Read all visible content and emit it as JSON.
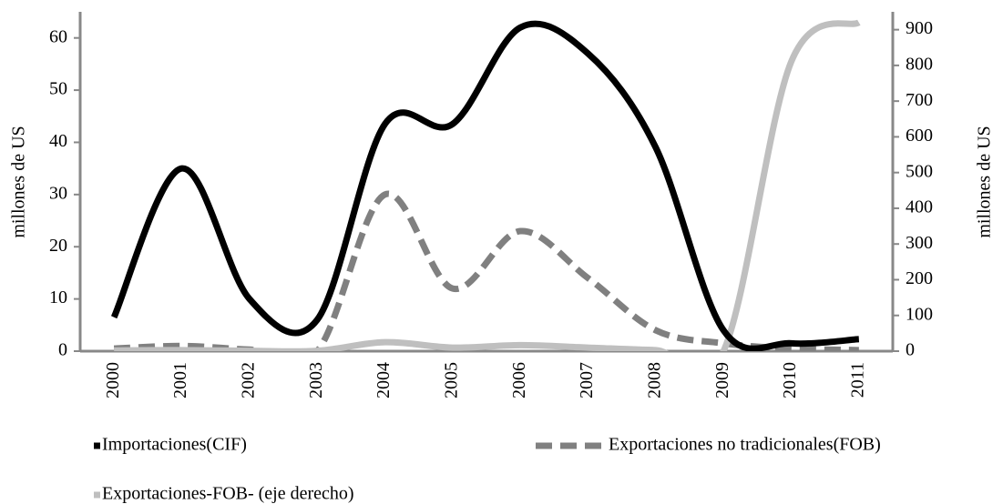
{
  "chart_data": {
    "type": "line",
    "categories": [
      "2000",
      "2001",
      "2002",
      "2003",
      "2004",
      "2005",
      "2006",
      "2007",
      "2008",
      "2009",
      "2010",
      "2011"
    ],
    "ylabel": "millones de US",
    "y2label": "millones de US",
    "ylim": [
      0,
      65
    ],
    "yticks": [
      0,
      10,
      20,
      30,
      40,
      50,
      60
    ],
    "y2lim": [
      0,
      950
    ],
    "y2ticks": [
      0,
      100,
      200,
      300,
      400,
      500,
      600,
      700,
      800,
      900
    ],
    "series": [
      {
        "name": "Importaciones(CIF)",
        "color": "#000000",
        "style": "solid",
        "values": [
          6.5,
          35,
          10,
          6,
          43.5,
          43.5,
          62,
          57,
          39,
          4,
          1.5,
          2.3
        ]
      },
      {
        "name": "Exportaciones no tradicionales(FOB)",
        "color": "#808080",
        "style": "dashed",
        "values": [
          0.5,
          1,
          0.3,
          0,
          30,
          12,
          23,
          14,
          4,
          1.5,
          0.5,
          0.2
        ]
      },
      {
        "name": "Exportaciones-FOB- (eje derecho)",
        "color": "#bfbfbf",
        "style": "solid",
        "axis": "y2",
        "values": [
          2,
          3,
          1,
          1,
          25,
          10,
          17,
          10,
          3,
          0,
          810,
          920
        ]
      }
    ]
  }
}
